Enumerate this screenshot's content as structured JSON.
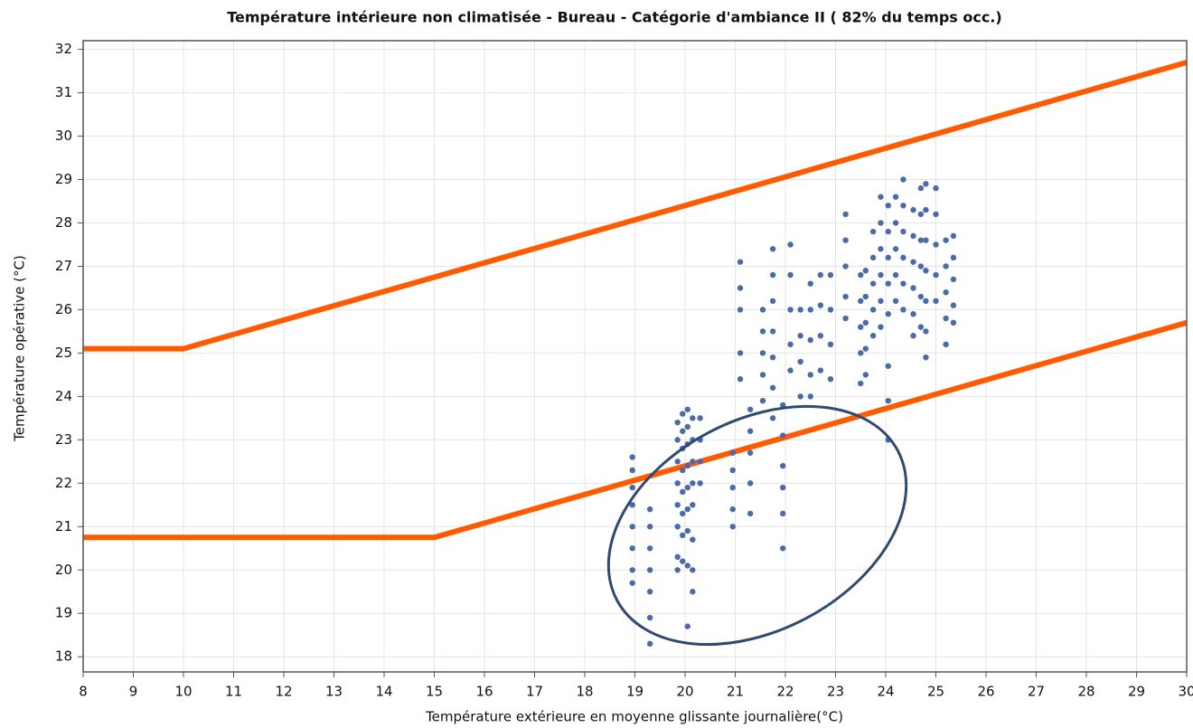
{
  "chart_data": {
    "type": "scatter",
    "title": "Température intérieure non climatisée  - Bureau - Catégorie d'ambiance II ( 82% du temps occ.)",
    "x_label": "Température extérieure en moyenne glissante journalière(°C)",
    "y_label": "Température opérative (°C)",
    "xlim": [
      8,
      30
    ],
    "ylim": [
      17.65,
      32.2
    ],
    "xticks": [
      8,
      9,
      10,
      11,
      12,
      13,
      14,
      15,
      16,
      17,
      18,
      19,
      20,
      21,
      22,
      23,
      24,
      25,
      26,
      27,
      28,
      29,
      30
    ],
    "yticks": [
      18,
      19,
      20,
      21,
      22,
      23,
      24,
      25,
      26,
      27,
      28,
      29,
      30,
      31,
      32
    ],
    "grid": true,
    "series": [
      {
        "type": "line",
        "color": "#ff5a00",
        "x": [
          8,
          10,
          30
        ],
        "values": [
          25.1,
          25.1,
          31.7
        ]
      },
      {
        "type": "line",
        "color": "#ff5a00",
        "x": [
          8,
          15,
          30
        ],
        "values": [
          20.75,
          20.75,
          25.7
        ]
      },
      {
        "type": "scatter",
        "color": "#4a6aaa",
        "x": [
          18.95,
          18.95,
          18.95,
          18.95,
          18.95,
          18.95,
          18.95,
          18.95,
          19.3,
          19.3,
          19.3,
          19.3,
          19.3,
          19.3,
          19.3,
          19.85,
          19.85,
          19.85,
          19.85,
          19.85,
          19.85,
          19.85,
          19.85,
          19.95,
          19.95,
          19.95,
          19.95,
          19.95,
          19.95,
          19.95,
          19.95,
          20.05,
          20.05,
          20.05,
          20.05,
          20.05,
          20.05,
          20.05,
          20.05,
          20.05,
          20.15,
          20.15,
          20.15,
          20.15,
          20.15,
          20.15,
          20.15,
          20.15,
          20.3,
          20.3,
          20.3,
          20.3,
          20.95,
          20.95,
          20.95,
          20.95,
          20.95,
          21.1,
          21.1,
          21.1,
          21.1,
          21.1,
          21.3,
          21.3,
          21.3,
          21.3,
          21.3,
          21.55,
          21.55,
          21.55,
          21.55,
          21.55,
          21.75,
          21.75,
          21.75,
          21.75,
          21.75,
          21.75,
          21.75,
          21.95,
          21.95,
          21.95,
          21.95,
          21.95,
          21.95,
          22.1,
          22.1,
          22.1,
          22.1,
          22.1,
          22.3,
          22.3,
          22.3,
          22.3,
          22.5,
          22.5,
          22.5,
          22.5,
          22.5,
          22.7,
          22.7,
          22.7,
          22.7,
          22.9,
          22.9,
          22.9,
          22.9,
          23.2,
          23.2,
          23.2,
          23.2,
          23.2,
          23.5,
          23.5,
          23.5,
          23.5,
          23.5,
          23.6,
          23.6,
          23.6,
          23.6,
          23.6,
          23.75,
          23.75,
          23.75,
          23.75,
          23.75,
          23.9,
          23.9,
          23.9,
          23.9,
          23.9,
          23.9,
          24.05,
          24.05,
          24.05,
          24.05,
          24.05,
          24.05,
          24.05,
          24.05,
          24.2,
          24.2,
          24.2,
          24.2,
          24.2,
          24.35,
          24.35,
          24.35,
          24.35,
          24.35,
          24.35,
          24.55,
          24.55,
          24.55,
          24.55,
          24.55,
          24.55,
          24.7,
          24.7,
          24.7,
          24.7,
          24.7,
          24.7,
          24.8,
          24.8,
          24.8,
          24.8,
          24.8,
          24.8,
          24.8,
          25.0,
          25.0,
          25.0,
          25.0,
          25.0,
          25.2,
          25.2,
          25.2,
          25.2,
          25.2,
          25.35,
          25.35,
          25.35,
          25.35,
          25.35
        ],
        "values": [
          22.6,
          22.3,
          21.9,
          21.5,
          21.0,
          20.5,
          20.0,
          19.7,
          21.4,
          21.0,
          20.5,
          20.0,
          19.5,
          18.9,
          18.3,
          23.4,
          23.0,
          22.5,
          22.0,
          21.5,
          21.0,
          20.3,
          20.0,
          23.6,
          23.2,
          22.8,
          22.3,
          21.8,
          21.3,
          20.8,
          20.2,
          23.7,
          23.3,
          22.9,
          22.4,
          21.9,
          21.4,
          20.9,
          20.1,
          18.7,
          23.5,
          23.0,
          22.5,
          22.0,
          21.5,
          20.7,
          20.0,
          19.5,
          23.5,
          23.0,
          22.5,
          22.0,
          22.7,
          22.3,
          21.9,
          21.4,
          21.0,
          27.1,
          26.5,
          26.0,
          25.0,
          24.4,
          23.7,
          23.2,
          22.7,
          22.0,
          21.3,
          26.0,
          25.5,
          25.0,
          24.5,
          23.9,
          27.4,
          26.8,
          26.2,
          25.5,
          24.9,
          24.2,
          23.5,
          23.8,
          23.1,
          22.4,
          21.9,
          21.3,
          20.5,
          27.5,
          26.8,
          26.0,
          25.2,
          24.6,
          26.0,
          25.4,
          24.8,
          24.0,
          26.6,
          26.0,
          25.3,
          24.5,
          24.0,
          26.8,
          26.1,
          25.4,
          24.6,
          26.8,
          26.0,
          25.2,
          24.4,
          28.2,
          27.6,
          27.0,
          26.3,
          25.8,
          26.8,
          26.2,
          25.6,
          25.0,
          24.3,
          26.9,
          26.3,
          25.7,
          25.1,
          24.5,
          27.8,
          27.2,
          26.6,
          26.0,
          25.4,
          28.6,
          28.0,
          27.4,
          26.8,
          26.2,
          25.6,
          28.4,
          27.8,
          27.2,
          26.6,
          25.9,
          24.7,
          23.9,
          23.0,
          28.6,
          28.0,
          27.4,
          26.8,
          26.2,
          29.0,
          28.4,
          27.8,
          27.2,
          26.6,
          26.0,
          28.3,
          27.7,
          27.1,
          26.5,
          25.9,
          25.4,
          28.8,
          28.2,
          27.6,
          27.0,
          26.3,
          25.6,
          28.9,
          28.3,
          27.6,
          26.9,
          26.2,
          25.5,
          24.9,
          28.8,
          28.2,
          27.5,
          26.8,
          26.2,
          27.6,
          27.0,
          26.4,
          25.8,
          25.2,
          27.7,
          27.2,
          26.7,
          26.1,
          25.7
        ]
      }
    ]
  }
}
